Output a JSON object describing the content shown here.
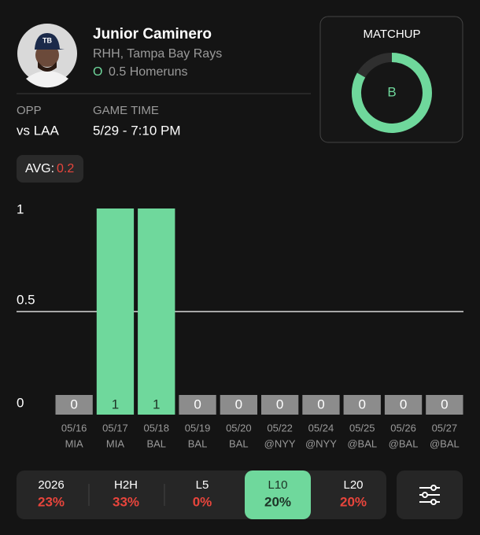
{
  "player": {
    "name": "Junior Caminero",
    "details": "RHH, Tampa Bay Rays",
    "prop_side": "O",
    "prop": "0.5 Homeruns"
  },
  "game": {
    "opp_label": "OPP",
    "opp": "vs LAA",
    "time_label": "GAME TIME",
    "time": "5/29 - 7:10 PM"
  },
  "matchup": {
    "title": "MATCHUP",
    "grade": "B"
  },
  "avg": {
    "label": "AVG:",
    "value": "0.2"
  },
  "chart_data": {
    "type": "bar",
    "categories": [
      "05/16",
      "05/17",
      "05/18",
      "05/19",
      "05/20",
      "05/22",
      "05/24",
      "05/25",
      "05/26",
      "05/27"
    ],
    "opponents": [
      "MIA",
      "MIA",
      "BAL",
      "BAL",
      "BAL",
      "@NYY",
      "@NYY",
      "@BAL",
      "@BAL",
      "@BAL"
    ],
    "values": [
      0,
      1,
      1,
      0,
      0,
      0,
      0,
      0,
      0,
      0
    ],
    "color": "#6fd89c",
    "zero_color": "#8c8c8c",
    "ylim": [
      0,
      1
    ],
    "yticks": [
      0,
      0.5,
      1
    ],
    "grid": false,
    "reference_line": 0.5
  },
  "tabs": [
    {
      "label": "2026",
      "value": "23%"
    },
    {
      "label": "H2H",
      "value": "33%"
    },
    {
      "label": "L5",
      "value": "0%"
    },
    {
      "label": "L10",
      "value": "20%",
      "active": true
    },
    {
      "label": "L20",
      "value": "20%"
    }
  ]
}
